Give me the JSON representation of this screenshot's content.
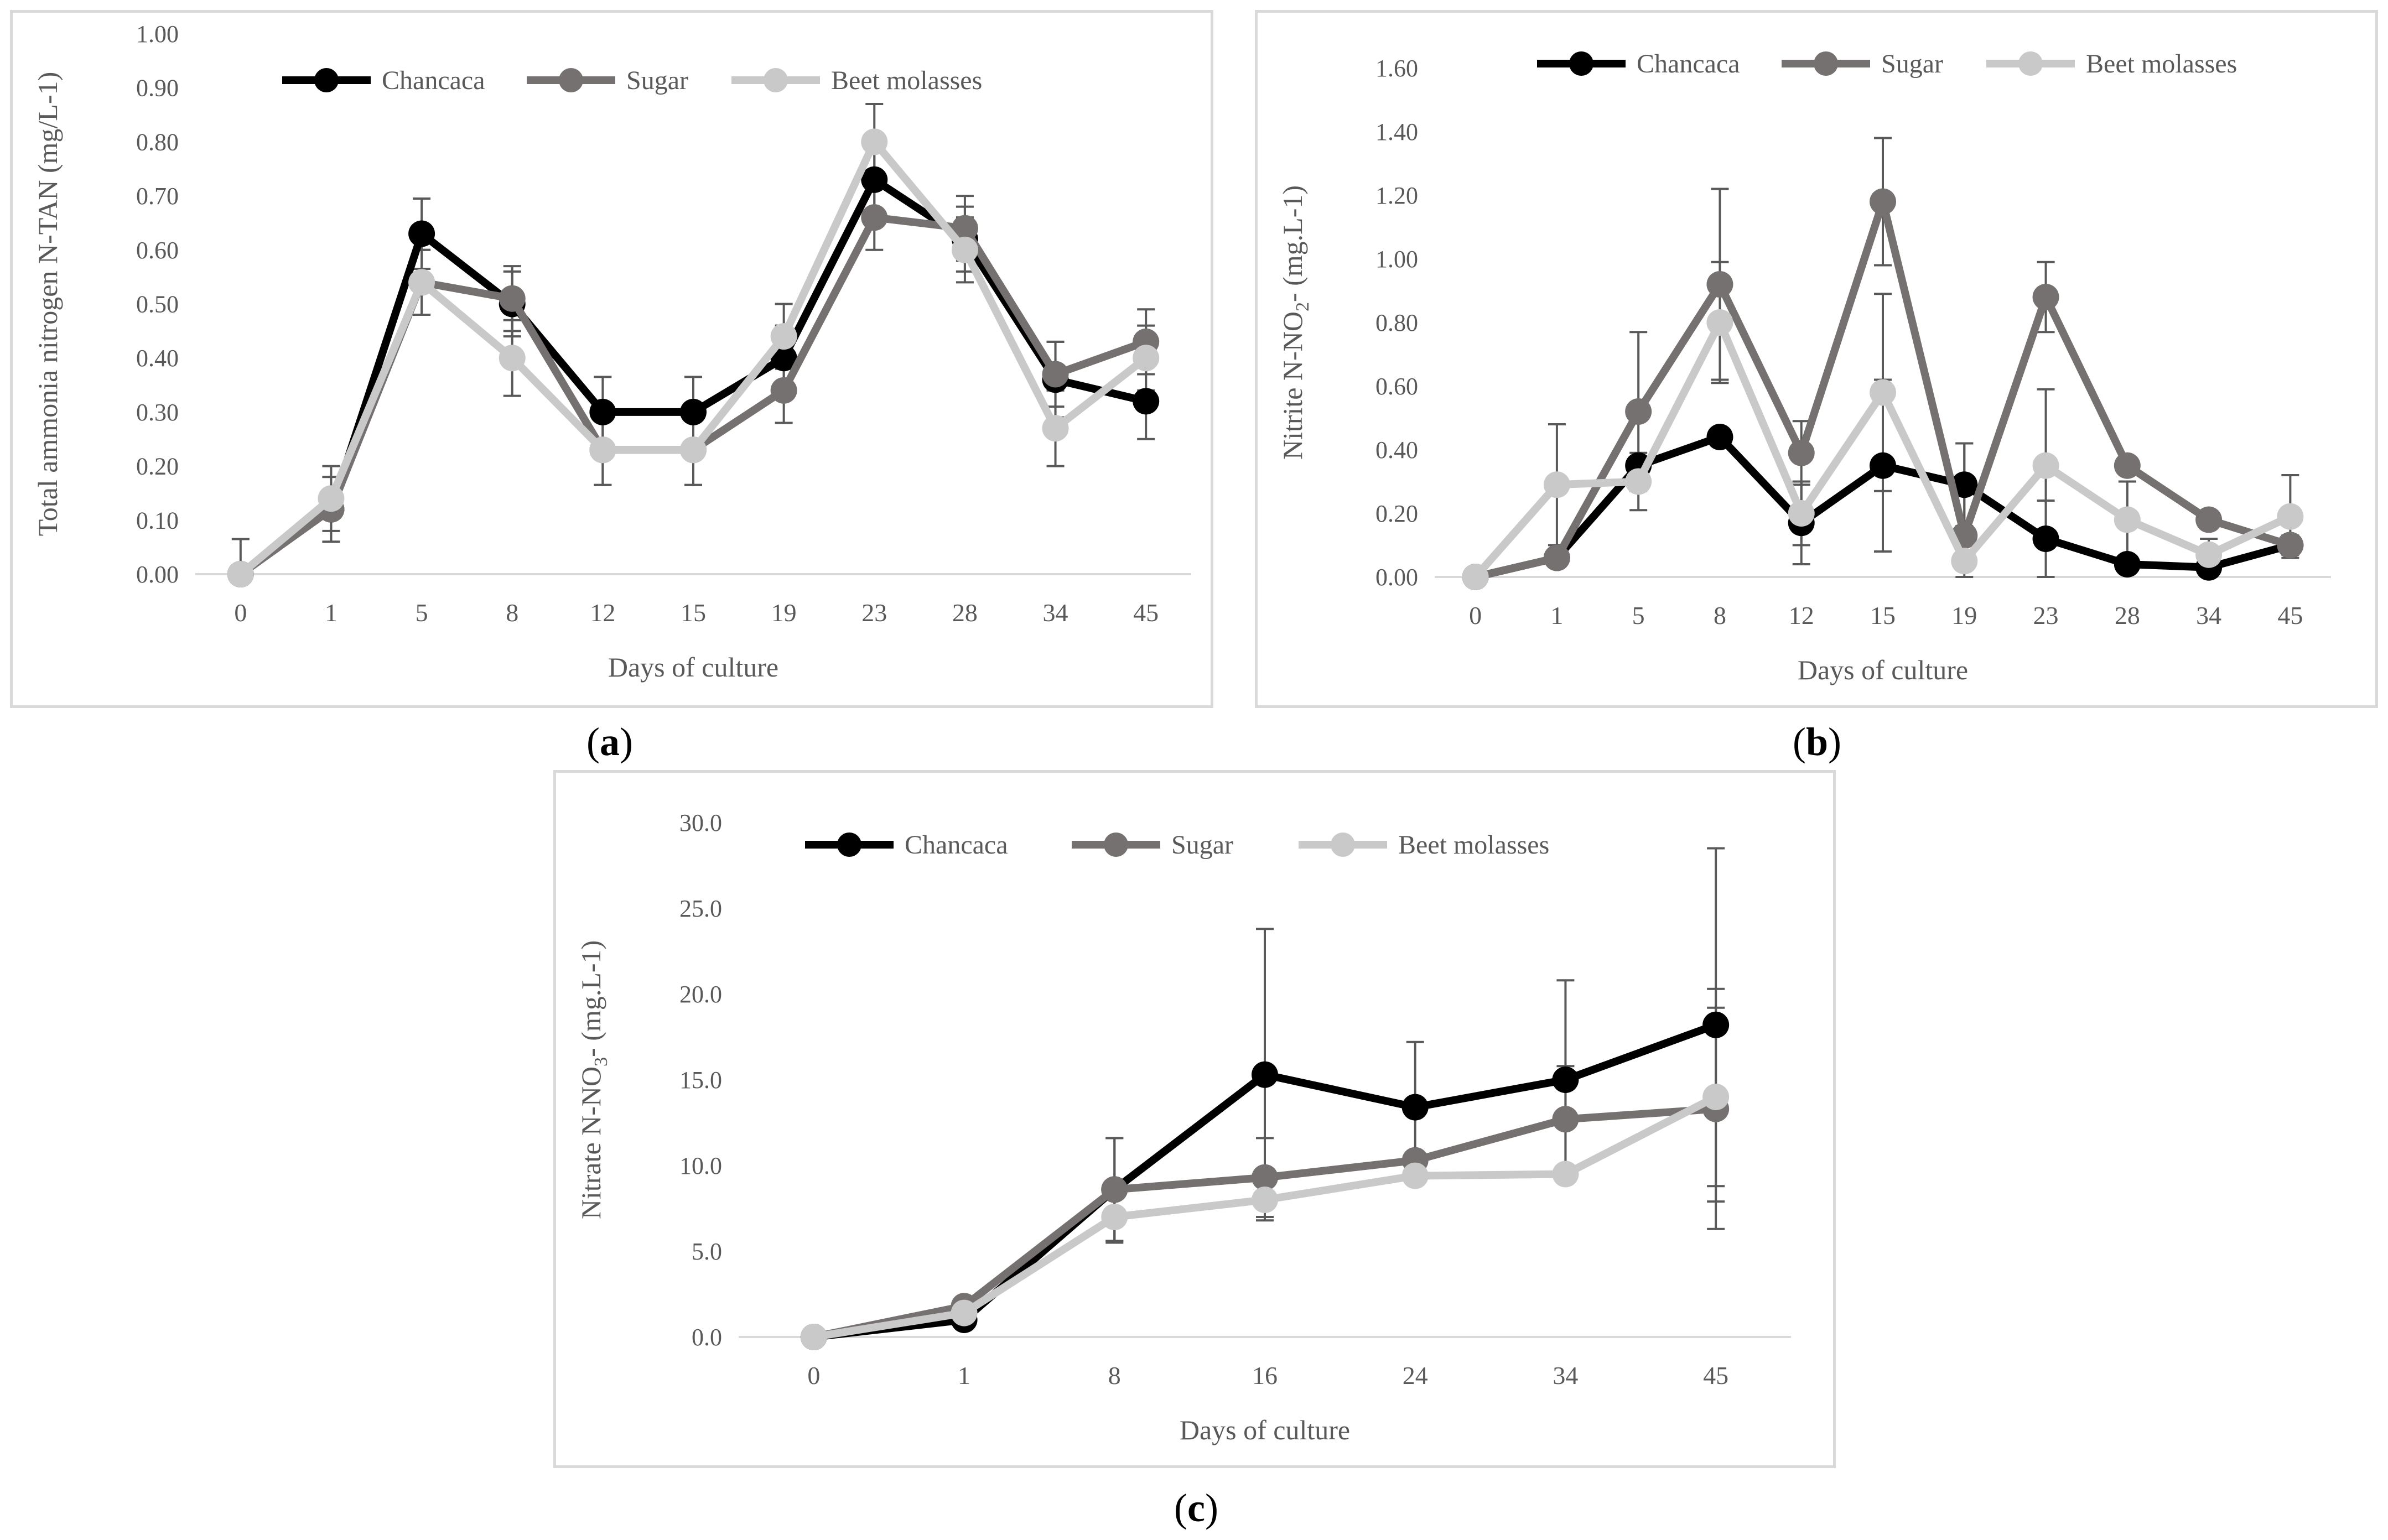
{
  "chart_data": [
    {
      "type": "line",
      "panel_label": "a",
      "categories": [
        "0",
        "1",
        "5",
        "8",
        "12",
        "15",
        "19",
        "23",
        "28",
        "34",
        "45"
      ],
      "xlabel": "Days of culture",
      "ylabel": "Total ammonia nitrogen N-TAN (mg/L-1)",
      "ylim": [
        0,
        1.0
      ],
      "ytick_step": 0.1,
      "ytick_decimals": 2,
      "grid": false,
      "legend_position": "top",
      "series": [
        {
          "name": "Chancaca",
          "color": "#000000",
          "values": [
            0.0,
            0.12,
            0.63,
            0.5,
            0.3,
            0.3,
            0.4,
            0.73,
            0.62,
            0.36,
            0.32
          ],
          "errors": [
            0.065,
            0.06,
            0.065,
            0.06,
            0.065,
            0.065,
            0.06,
            0.06,
            0.06,
            0.07,
            0.07
          ]
        },
        {
          "name": "Sugar",
          "color": "#767171",
          "values": [
            0.0,
            0.12,
            0.54,
            0.51,
            0.23,
            0.23,
            0.34,
            0.66,
            0.64,
            0.37,
            0.43
          ],
          "errors": [
            0.0,
            0.06,
            0.06,
            0.06,
            0.065,
            0.065,
            0.06,
            0.06,
            0.06,
            0.06,
            0.06
          ]
        },
        {
          "name": "Beet molasses",
          "color": "#c9c9c9",
          "values": [
            0.0,
            0.14,
            0.54,
            0.4,
            0.23,
            0.23,
            0.44,
            0.8,
            0.6,
            0.27,
            0.4
          ],
          "errors": [
            0.0,
            0.06,
            0.06,
            0.07,
            0.065,
            0.065,
            0.06,
            0.07,
            0.06,
            0.07,
            0.06
          ]
        }
      ]
    },
    {
      "type": "line",
      "panel_label": "b",
      "categories": [
        "0",
        "1",
        "5",
        "8",
        "12",
        "15",
        "19",
        "23",
        "28",
        "34",
        "45"
      ],
      "xlabel": "Days of culture",
      "ylabel_parts": [
        "Nitrite N-NO",
        "2",
        "- (mg.L-1)"
      ],
      "ylim": [
        0,
        1.6
      ],
      "ytick_step": 0.2,
      "ytick_decimals": 2,
      "grid": false,
      "legend_position": "top",
      "series": [
        {
          "name": "Chancaca",
          "color": "#000000",
          "values": [
            0.0,
            0.06,
            0.35,
            0.44,
            0.17,
            0.35,
            0.29,
            0.12,
            0.04,
            0.03,
            0.1
          ],
          "errors": [
            0.0,
            0.02,
            0.0,
            0.0,
            0.13,
            0.27,
            0.13,
            0.12,
            0.0,
            0.0,
            0.03
          ]
        },
        {
          "name": "Sugar",
          "color": "#767171",
          "values": [
            0.0,
            0.06,
            0.52,
            0.92,
            0.39,
            1.18,
            0.13,
            0.88,
            0.35,
            0.18,
            0.1
          ],
          "errors": [
            0.0,
            0.0,
            0.25,
            0.3,
            0.1,
            0.2,
            0.0,
            0.11,
            0.0,
            0.0,
            0.0
          ]
        },
        {
          "name": "Beet molasses",
          "color": "#c9c9c9",
          "values": [
            0.0,
            0.29,
            0.3,
            0.8,
            0.2,
            0.58,
            0.05,
            0.35,
            0.18,
            0.07,
            0.19
          ],
          "errors": [
            0.0,
            0.19,
            0.09,
            0.19,
            0.1,
            0.31,
            0.37,
            0.24,
            0.12,
            0.05,
            0.13
          ]
        }
      ]
    },
    {
      "type": "line",
      "panel_label": "c",
      "categories": [
        "0",
        "1",
        "8",
        "16",
        "24",
        "34",
        "45"
      ],
      "xlabel": "Days of culture",
      "ylabel_parts": [
        "Nitrate N-NO",
        "3",
        "- (mg.L-1)"
      ],
      "ylim": [
        0,
        30
      ],
      "ytick_step": 5,
      "ytick_decimals": 1,
      "grid": false,
      "legend_position": "top",
      "series": [
        {
          "name": "Chancaca",
          "color": "#000000",
          "values": [
            0.0,
            1.0,
            8.6,
            15.3,
            13.4,
            15.0,
            18.2
          ],
          "errors": [
            0.0,
            0.0,
            3.0,
            8.5,
            3.8,
            5.8,
            10.3
          ]
        },
        {
          "name": "Sugar",
          "color": "#767171",
          "values": [
            0.0,
            1.8,
            8.6,
            9.3,
            10.3,
            12.7,
            13.3
          ],
          "errors": [
            0.0,
            0.0,
            3.0,
            2.3,
            0.0,
            3.1,
            7.0
          ]
        },
        {
          "name": "Beet molasses",
          "color": "#c9c9c9",
          "values": [
            0.0,
            1.4,
            7.0,
            8.0,
            9.4,
            9.5,
            14.0
          ],
          "errors": [
            0.0,
            0.0,
            1.5,
            1.0,
            0.0,
            0.0,
            5.2
          ]
        }
      ]
    }
  ]
}
